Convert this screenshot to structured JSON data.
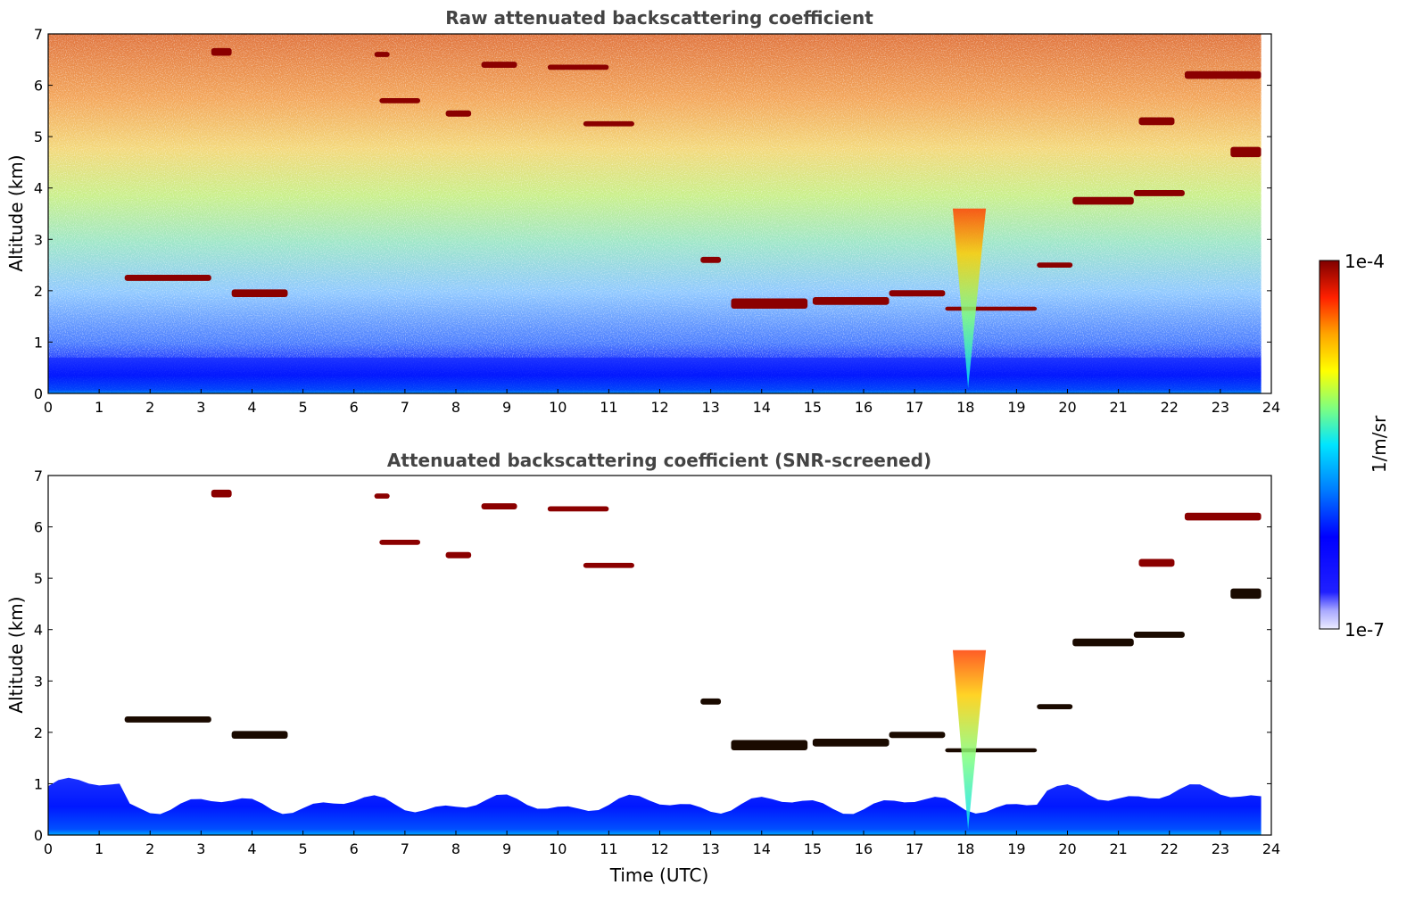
{
  "chart_data": [
    {
      "type": "heatmap",
      "panel": "raw",
      "title": "Raw attenuated backscattering coefficient",
      "xlabel": "",
      "ylabel": "Altitude (km)",
      "xlim": [
        0,
        24
      ],
      "ylim": [
        0,
        7
      ],
      "xticks": [
        "0",
        "1",
        "2",
        "3",
        "4",
        "5",
        "6",
        "7",
        "8",
        "9",
        "10",
        "11",
        "12",
        "13",
        "14",
        "15",
        "16",
        "17",
        "18",
        "19",
        "20",
        "21",
        "22",
        "23",
        "24"
      ],
      "yticks": [
        "0",
        "1",
        "2",
        "3",
        "4",
        "5",
        "6",
        "7"
      ],
      "data_extent_hours": [
        0,
        23.8
      ],
      "cloud_features": [
        {
          "t0": 1.5,
          "t1": 3.2,
          "z": 2.25,
          "thick": 0.12
        },
        {
          "t0": 3.6,
          "t1": 4.7,
          "z": 1.95,
          "thick": 0.15
        },
        {
          "t0": 12.8,
          "t1": 13.2,
          "z": 2.6,
          "thick": 0.12
        },
        {
          "t0": 13.4,
          "t1": 14.9,
          "z": 1.75,
          "thick": 0.2
        },
        {
          "t0": 15.0,
          "t1": 16.5,
          "z": 1.8,
          "thick": 0.15
        },
        {
          "t0": 16.5,
          "t1": 17.6,
          "z": 1.95,
          "thick": 0.12
        },
        {
          "t0": 17.6,
          "t1": 19.4,
          "z": 1.65,
          "thick": 0.08
        },
        {
          "t0": 19.4,
          "t1": 20.1,
          "z": 2.5,
          "thick": 0.1
        },
        {
          "t0": 20.1,
          "t1": 21.3,
          "z": 3.75,
          "thick": 0.15
        },
        {
          "t0": 21.3,
          "t1": 22.3,
          "z": 3.9,
          "thick": 0.12
        },
        {
          "t0": 22.3,
          "t1": 23.8,
          "z": 6.2,
          "thick": 0.15
        },
        {
          "t0": 21.4,
          "t1": 22.1,
          "z": 5.3,
          "thick": 0.15
        },
        {
          "t0": 23.2,
          "t1": 23.8,
          "z": 4.7,
          "thick": 0.2
        },
        {
          "t0": 8.5,
          "t1": 9.2,
          "z": 6.4,
          "thick": 0.12
        },
        {
          "t0": 9.8,
          "t1": 11.0,
          "z": 6.35,
          "thick": 0.1
        },
        {
          "t0": 10.5,
          "t1": 11.5,
          "z": 5.25,
          "thick": 0.1
        },
        {
          "t0": 7.8,
          "t1": 8.3,
          "z": 5.45,
          "thick": 0.12
        },
        {
          "t0": 6.5,
          "t1": 7.3,
          "z": 5.7,
          "thick": 0.1
        },
        {
          "t0": 3.2,
          "t1": 3.6,
          "z": 6.65,
          "thick": 0.15
        },
        {
          "t0": 6.4,
          "t1": 6.7,
          "z": 6.6,
          "thick": 0.1
        }
      ],
      "plume": {
        "t": 18.1,
        "z_top": 3.6
      }
    },
    {
      "type": "heatmap",
      "panel": "screened",
      "title": "Attenuated backscattering coefficient (SNR-screened)",
      "xlabel": "Time (UTC)",
      "ylabel": "Altitude (km)",
      "xlim": [
        0,
        24
      ],
      "ylim": [
        0,
        7
      ],
      "xticks": [
        "0",
        "1",
        "2",
        "3",
        "4",
        "5",
        "6",
        "7",
        "8",
        "9",
        "10",
        "11",
        "12",
        "13",
        "14",
        "15",
        "16",
        "17",
        "18",
        "19",
        "20",
        "21",
        "22",
        "23",
        "24"
      ],
      "yticks": [
        "0",
        "1",
        "2",
        "3",
        "4",
        "5",
        "6",
        "7"
      ],
      "data_extent_hours": [
        0,
        23.8
      ],
      "boundary_layer_top_km": 0.6
    }
  ],
  "colorbar": {
    "label": "1/m/sr",
    "max_label": "1e-4",
    "min_label": "1e-7",
    "colormap": [
      "#7f0000",
      "#ff0000",
      "#ffa500",
      "#ffff00",
      "#7fff7f",
      "#00ffff",
      "#007fff",
      "#0000ff",
      "#00008f",
      "#e8e8ff"
    ]
  }
}
